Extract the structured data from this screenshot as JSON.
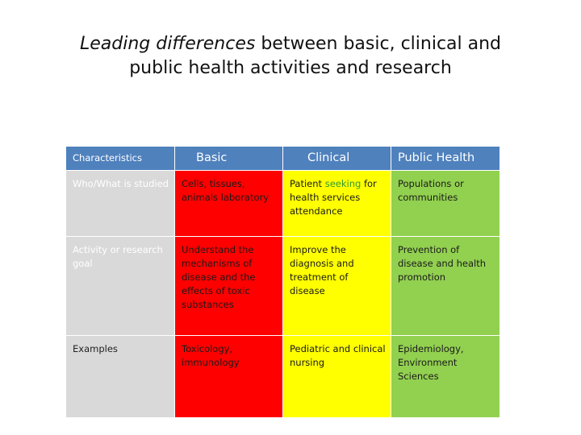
{
  "title": {
    "line1_italic": "Leading differences",
    "line1_rest": " between basic, clinical and",
    "line2": "public health activities and research"
  },
  "table": {
    "headers": [
      "Characteristics",
      "Basic",
      "Clinical",
      "Public Health"
    ],
    "rows": [
      {
        "characteristic": "Who/What is studied",
        "basic": "Cells, tissues, animals laboratory",
        "clinical_pre": "Patient ",
        "clinical_highlight": "seeking",
        "clinical_post": " for health services attendance",
        "public_health": "Populations or communities"
      },
      {
        "characteristic": "Activity or research goal",
        "basic": "Understand the mechanisms of disease and the effects of toxic substances",
        "clinical": "Improve the diagnosis and treatment of disease",
        "public_health": "Prevention of disease and health promotion"
      },
      {
        "characteristic": "Examples",
        "basic": "Toxicology, immunology",
        "clinical": "Pediatric and clinical nursing",
        "public_health": "Epidemiology, Environment Sciences"
      }
    ]
  },
  "colors": {
    "header": "#4f81bd",
    "characteristics_column": "#d9d9d9",
    "basic_column": "#ff0000",
    "clinical_column": "#ffff00",
    "public_health_column": "#92d050",
    "highlight_text": "#2e9a2e"
  }
}
